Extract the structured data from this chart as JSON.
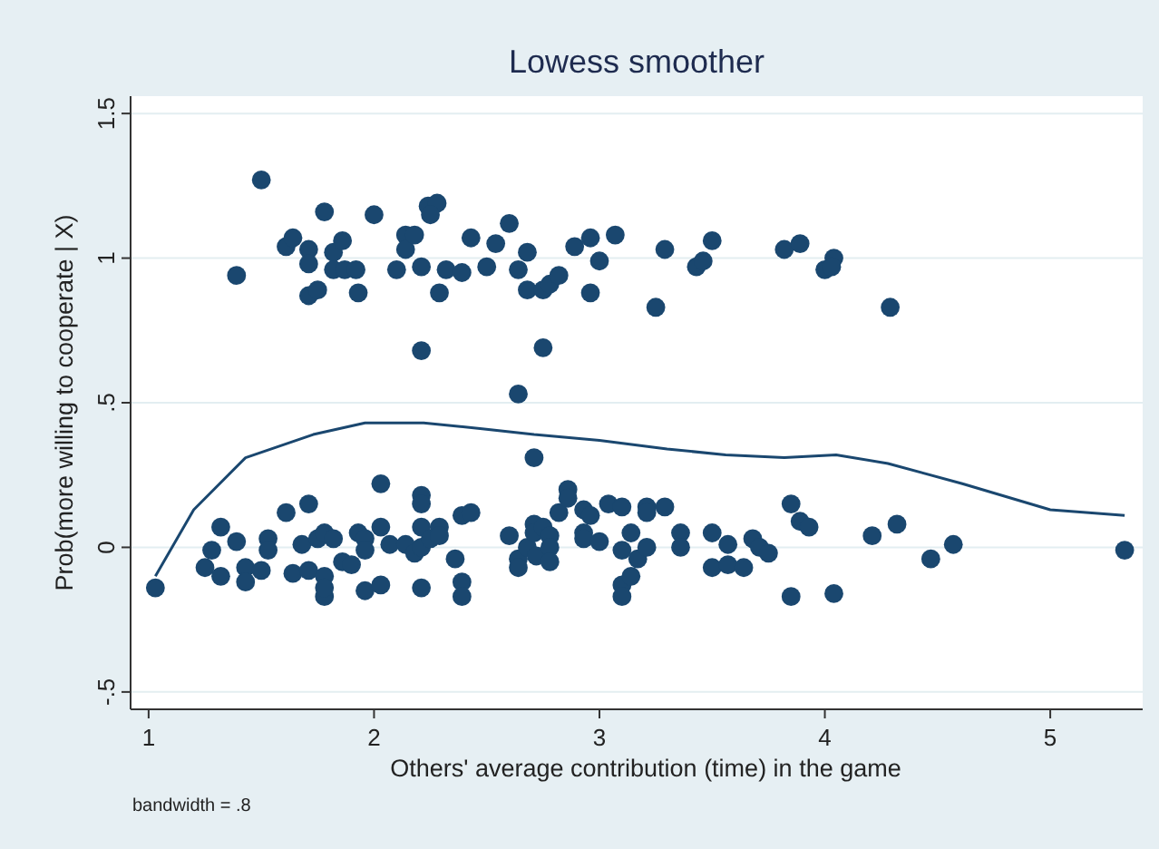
{
  "chart_data": {
    "type": "scatter",
    "title": "Lowess smoother",
    "xlabel": "Others' average contribution (time) in the game",
    "ylabel": "Prob(more willing to cooperate | X)",
    "annotations": [
      "bandwidth = .8"
    ],
    "xlim": [
      0.92,
      5.41
    ],
    "ylim": [
      -0.56,
      1.56
    ],
    "xticks": [
      1,
      2,
      3,
      4,
      5
    ],
    "yticks": [
      {
        "value": -0.5,
        "label": "-.5"
      },
      0,
      {
        "value": 0.5,
        "label": ".5"
      },
      1,
      {
        "value": 1.5,
        "label": "1.5"
      }
    ],
    "grid": "y",
    "series": [
      {
        "marker": "circle",
        "color": "#1a476f",
        "x": [
          1.5,
          1.39,
          1.61,
          1.64,
          1.71,
          1.71,
          1.71,
          1.75,
          1.78,
          1.82,
          1.86,
          1.82,
          1.87,
          1.92,
          1.93,
          2.0,
          2.1,
          2.14,
          2.14,
          2.18,
          2.21,
          2.21,
          2.24,
          2.28,
          2.25,
          2.29,
          2.32,
          2.39,
          2.43,
          2.5,
          2.54,
          2.6,
          2.64,
          2.64,
          2.68,
          2.68,
          2.71,
          2.75,
          2.75,
          2.78,
          2.82,
          2.89,
          2.96,
          2.96,
          3.0,
          3.07,
          3.25,
          3.29,
          3.43,
          3.46,
          3.5,
          3.82,
          3.89,
          4.0,
          4.04,
          4.03,
          4.29,
          1.03,
          1.25,
          1.28,
          1.32,
          1.32,
          1.39,
          1.43,
          1.43,
          1.5,
          1.53,
          1.53,
          1.61,
          1.64,
          1.68,
          1.71,
          1.71,
          1.75,
          1.78,
          1.78,
          1.78,
          1.78,
          1.82,
          1.86,
          1.9,
          1.93,
          1.96,
          1.96,
          1.96,
          2.03,
          2.03,
          2.03,
          2.07,
          2.14,
          2.18,
          2.21,
          2.21,
          2.21,
          2.21,
          2.21,
          2.25,
          2.29,
          2.29,
          2.36,
          2.39,
          2.43,
          2.39,
          2.39,
          2.6,
          2.64,
          2.64,
          2.68,
          2.71,
          2.71,
          2.72,
          2.75,
          2.78,
          2.78,
          2.78,
          2.82,
          2.86,
          2.86,
          2.93,
          2.93,
          2.93,
          2.96,
          3.0,
          3.04,
          3.1,
          3.1,
          3.1,
          3.1,
          3.14,
          3.14,
          3.17,
          3.21,
          3.21,
          3.21,
          3.29,
          3.36,
          3.36,
          3.5,
          3.5,
          3.57,
          3.57,
          3.64,
          3.68,
          3.71,
          3.75,
          3.85,
          3.85,
          3.89,
          3.93,
          4.04,
          4.21,
          4.32,
          4.47,
          4.57,
          5.33
        ],
        "values": [
          1.27,
          0.94,
          1.04,
          1.07,
          1.03,
          0.98,
          0.87,
          0.89,
          1.16,
          1.02,
          1.06,
          0.96,
          0.96,
          0.96,
          0.88,
          1.15,
          0.96,
          1.08,
          1.03,
          1.08,
          0.97,
          0.68,
          1.18,
          1.19,
          1.15,
          0.88,
          0.96,
          0.95,
          1.07,
          0.97,
          1.05,
          1.12,
          0.96,
          0.53,
          1.02,
          0.89,
          0.31,
          0.69,
          0.89,
          0.91,
          0.94,
          1.04,
          1.07,
          0.88,
          0.99,
          1.08,
          0.83,
          1.03,
          0.97,
          0.99,
          1.06,
          1.03,
          1.05,
          0.96,
          1.0,
          0.97,
          0.83,
          -0.14,
          -0.07,
          -0.01,
          0.07,
          -0.1,
          0.02,
          -0.07,
          -0.12,
          -0.08,
          0.03,
          -0.01,
          0.12,
          -0.09,
          0.01,
          0.15,
          -0.08,
          0.03,
          0.05,
          -0.1,
          -0.17,
          -0.14,
          0.03,
          -0.05,
          -0.06,
          0.05,
          0.03,
          -0.01,
          -0.15,
          0.22,
          0.07,
          -0.13,
          0.01,
          0.01,
          -0.02,
          0.18,
          0.15,
          0.07,
          0.0,
          -0.14,
          0.03,
          0.07,
          0.04,
          -0.04,
          0.11,
          0.12,
          -0.12,
          -0.17,
          0.04,
          -0.04,
          -0.07,
          0.0,
          0.08,
          0.05,
          -0.03,
          0.07,
          0.04,
          0.0,
          -0.05,
          0.12,
          0.2,
          0.17,
          0.13,
          0.05,
          0.03,
          0.11,
          0.02,
          0.15,
          0.14,
          -0.01,
          -0.13,
          -0.17,
          0.05,
          -0.1,
          -0.04,
          0.14,
          0.0,
          0.12,
          0.14,
          0.05,
          0.0,
          0.05,
          -0.07,
          0.01,
          -0.06,
          -0.07,
          0.03,
          0.0,
          -0.02,
          0.15,
          -0.17,
          0.09,
          0.07,
          -0.16,
          0.04,
          0.08,
          -0.04,
          0.01,
          -0.01
        ]
      },
      {
        "type": "line",
        "color": "#1a476f",
        "x": [
          1.03,
          1.2,
          1.43,
          1.73,
          1.96,
          2.22,
          2.48,
          2.71,
          3.0,
          3.3,
          3.56,
          3.82,
          4.05,
          4.28,
          4.61,
          5.0,
          5.33
        ],
        "values": [
          -0.1,
          0.13,
          0.31,
          0.39,
          0.43,
          0.43,
          0.41,
          0.39,
          0.37,
          0.34,
          0.32,
          0.31,
          0.32,
          0.29,
          0.22,
          0.13,
          0.11
        ]
      }
    ]
  }
}
